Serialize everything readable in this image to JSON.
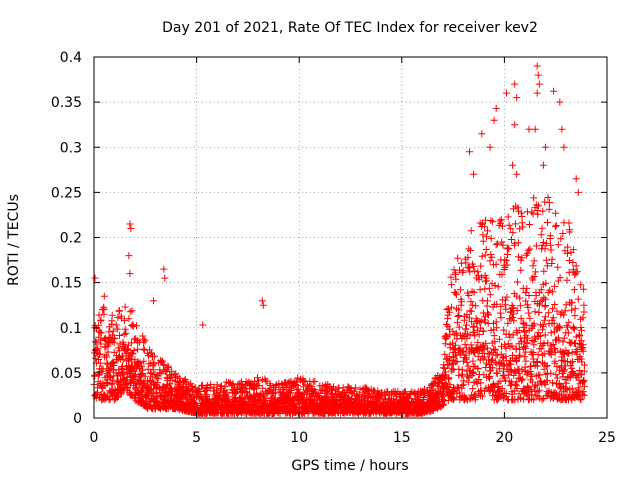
{
  "chart_data": {
    "type": "scatter",
    "title": "Day 201 of 2021, Rate Of TEC Index for receiver kev2",
    "xlabel": "GPS time / hours",
    "ylabel": "ROTI / TECUs",
    "xlim": [
      0,
      25
    ],
    "ylim": [
      0,
      0.4
    ],
    "x_ticks": [
      0,
      5,
      10,
      15,
      20,
      25
    ],
    "x_tick_labels": [
      "0",
      "5",
      "10",
      "15",
      "20",
      "25"
    ],
    "y_ticks": [
      0,
      0.05,
      0.1,
      0.15,
      0.2,
      0.25,
      0.3,
      0.35,
      0.4
    ],
    "y_tick_labels": [
      "0",
      "0.05",
      "0.1",
      "0.15",
      "0.2",
      "0.25",
      "0.3",
      "0.35",
      "0.4"
    ],
    "grid": true,
    "marker": "+",
    "color": "#ff0000",
    "series": [
      {
        "name": "ROTI",
        "profile": [
          {
            "x": 0.0,
            "low": 0.02,
            "high": 0.1
          },
          {
            "x": 0.5,
            "low": 0.02,
            "high": 0.13
          },
          {
            "x": 1.0,
            "low": 0.02,
            "high": 0.11
          },
          {
            "x": 1.5,
            "low": 0.03,
            "high": 0.13
          },
          {
            "x": 2.0,
            "low": 0.02,
            "high": 0.12
          },
          {
            "x": 2.5,
            "low": 0.01,
            "high": 0.09
          },
          {
            "x": 3.0,
            "low": 0.01,
            "high": 0.07
          },
          {
            "x": 3.5,
            "low": 0.01,
            "high": 0.06
          },
          {
            "x": 4.0,
            "low": 0.01,
            "high": 0.05
          },
          {
            "x": 5.0,
            "low": 0.005,
            "high": 0.035
          },
          {
            "x": 6.0,
            "low": 0.005,
            "high": 0.04
          },
          {
            "x": 7.0,
            "low": 0.005,
            "high": 0.04
          },
          {
            "x": 8.0,
            "low": 0.005,
            "high": 0.045
          },
          {
            "x": 9.0,
            "low": 0.005,
            "high": 0.04
          },
          {
            "x": 10.0,
            "low": 0.005,
            "high": 0.045
          },
          {
            "x": 11.0,
            "low": 0.005,
            "high": 0.04
          },
          {
            "x": 12.0,
            "low": 0.005,
            "high": 0.035
          },
          {
            "x": 13.0,
            "low": 0.005,
            "high": 0.035
          },
          {
            "x": 14.0,
            "low": 0.005,
            "high": 0.03
          },
          {
            "x": 15.0,
            "low": 0.005,
            "high": 0.03
          },
          {
            "x": 16.0,
            "low": 0.005,
            "high": 0.03
          },
          {
            "x": 16.8,
            "low": 0.01,
            "high": 0.05
          },
          {
            "x": 17.3,
            "low": 0.02,
            "high": 0.15
          },
          {
            "x": 18.0,
            "low": 0.02,
            "high": 0.2
          },
          {
            "x": 19.0,
            "low": 0.02,
            "high": 0.22
          },
          {
            "x": 20.0,
            "low": 0.02,
            "high": 0.23
          },
          {
            "x": 21.0,
            "low": 0.02,
            "high": 0.24
          },
          {
            "x": 22.0,
            "low": 0.02,
            "high": 0.25
          },
          {
            "x": 23.0,
            "low": 0.02,
            "high": 0.24
          },
          {
            "x": 23.9,
            "low": 0.02,
            "high": 0.14
          }
        ],
        "outliers": [
          {
            "x": 0.05,
            "y": 0.155
          },
          {
            "x": 0.5,
            "y": 0.135
          },
          {
            "x": 1.75,
            "y": 0.215
          },
          {
            "x": 1.8,
            "y": 0.21
          },
          {
            "x": 1.7,
            "y": 0.18
          },
          {
            "x": 1.75,
            "y": 0.16
          },
          {
            "x": 2.9,
            "y": 0.13
          },
          {
            "x": 3.4,
            "y": 0.165
          },
          {
            "x": 3.45,
            "y": 0.155
          },
          {
            "x": 5.3,
            "y": 0.103
          },
          {
            "x": 8.2,
            "y": 0.13
          },
          {
            "x": 8.25,
            "y": 0.125
          },
          {
            "x": 18.3,
            "y": 0.295
          },
          {
            "x": 18.9,
            "y": 0.315
          },
          {
            "x": 19.5,
            "y": 0.33
          },
          {
            "x": 19.6,
            "y": 0.343
          },
          {
            "x": 20.1,
            "y": 0.36
          },
          {
            "x": 20.5,
            "y": 0.37
          },
          {
            "x": 20.6,
            "y": 0.355
          },
          {
            "x": 20.5,
            "y": 0.325
          },
          {
            "x": 21.2,
            "y": 0.32
          },
          {
            "x": 21.6,
            "y": 0.39
          },
          {
            "x": 21.65,
            "y": 0.38
          },
          {
            "x": 21.7,
            "y": 0.37
          },
          {
            "x": 21.6,
            "y": 0.36
          },
          {
            "x": 21.5,
            "y": 0.32
          },
          {
            "x": 22.4,
            "y": 0.362
          },
          {
            "x": 22.7,
            "y": 0.35
          },
          {
            "x": 22.8,
            "y": 0.32
          },
          {
            "x": 22.9,
            "y": 0.3
          },
          {
            "x": 22.0,
            "y": 0.3
          },
          {
            "x": 21.9,
            "y": 0.28
          },
          {
            "x": 20.4,
            "y": 0.28
          },
          {
            "x": 20.6,
            "y": 0.27
          },
          {
            "x": 18.5,
            "y": 0.27
          },
          {
            "x": 23.5,
            "y": 0.265
          },
          {
            "x": 23.6,
            "y": 0.25
          },
          {
            "x": 19.3,
            "y": 0.3
          }
        ]
      }
    ]
  }
}
